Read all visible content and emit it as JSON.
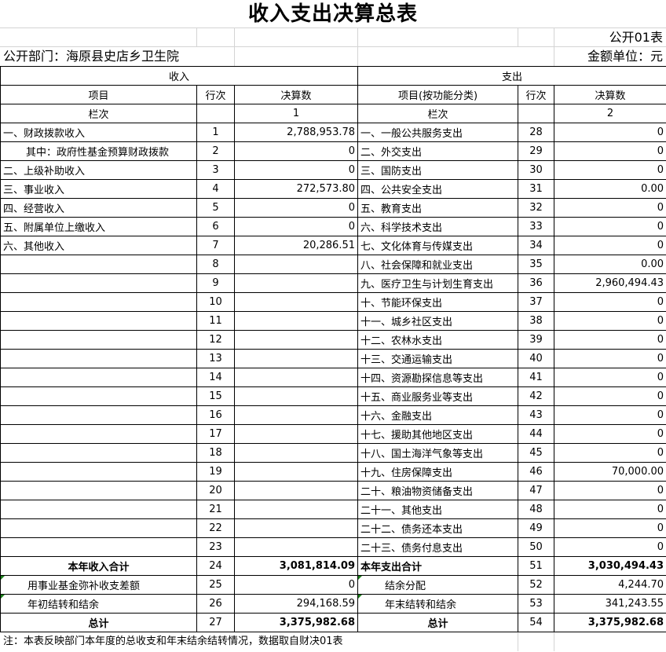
{
  "title": "收入支出决算总表",
  "form_code": "公开01表",
  "department": "公开部门：海原县史店乡卫生院",
  "unit": "金额单位：元",
  "headers": {
    "income": "收入",
    "expense": "支出",
    "item": "项目",
    "row_no": "行次",
    "amount": "决算数",
    "item_func": "项目(按功能分类)",
    "col_label": "栏次",
    "col1": "1",
    "col2": "2"
  },
  "rows": [
    {
      "in_item": "一、财政拨款收入",
      "in_no": "1",
      "in_amt": "2,788,953.78",
      "ex_item": "一、一般公共服务支出",
      "ex_no": "28",
      "ex_amt": "0"
    },
    {
      "in_item": "其中：政府性基金预算财政拨款",
      "in_no": "2",
      "in_amt": "0",
      "ex_item": "二、外交支出",
      "ex_no": "29",
      "ex_amt": "0"
    },
    {
      "in_item": "二、上级补助收入",
      "in_no": "3",
      "in_amt": "0",
      "ex_item": "三、国防支出",
      "ex_no": "30",
      "ex_amt": "0"
    },
    {
      "in_item": "三、事业收入",
      "in_no": "4",
      "in_amt": "272,573.80",
      "ex_item": "四、公共安全支出",
      "ex_no": "31",
      "ex_amt": "0.00"
    },
    {
      "in_item": "四、经营收入",
      "in_no": "5",
      "in_amt": "0",
      "ex_item": "五、教育支出",
      "ex_no": "32",
      "ex_amt": "0"
    },
    {
      "in_item": "五、附属单位上缴收入",
      "in_no": "6",
      "in_amt": "0",
      "ex_item": "六、科学技术支出",
      "ex_no": "33",
      "ex_amt": "0"
    },
    {
      "in_item": "六、其他收入",
      "in_no": "7",
      "in_amt": "20,286.51",
      "ex_item": "七、文化体育与传媒支出",
      "ex_no": "34",
      "ex_amt": "0"
    },
    {
      "in_item": "",
      "in_no": "8",
      "in_amt": "",
      "ex_item": "八、社会保障和就业支出",
      "ex_no": "35",
      "ex_amt": "0.00"
    },
    {
      "in_item": "",
      "in_no": "9",
      "in_amt": "",
      "ex_item": "九、医疗卫生与计划生育支出",
      "ex_no": "36",
      "ex_amt": "2,960,494.43"
    },
    {
      "in_item": "",
      "in_no": "10",
      "in_amt": "",
      "ex_item": "十、节能环保支出",
      "ex_no": "37",
      "ex_amt": "0"
    },
    {
      "in_item": "",
      "in_no": "11",
      "in_amt": "",
      "ex_item": "十一、城乡社区支出",
      "ex_no": "38",
      "ex_amt": "0"
    },
    {
      "in_item": "",
      "in_no": "12",
      "in_amt": "",
      "ex_item": "十二、农林水支出",
      "ex_no": "39",
      "ex_amt": "0"
    },
    {
      "in_item": "",
      "in_no": "13",
      "in_amt": "",
      "ex_item": "十三、交通运输支出",
      "ex_no": "40",
      "ex_amt": "0"
    },
    {
      "in_item": "",
      "in_no": "14",
      "in_amt": "",
      "ex_item": "十四、资源勘探信息等支出",
      "ex_no": "41",
      "ex_amt": "0"
    },
    {
      "in_item": "",
      "in_no": "15",
      "in_amt": "",
      "ex_item": "十五、商业服务业等支出",
      "ex_no": "42",
      "ex_amt": "0"
    },
    {
      "in_item": "",
      "in_no": "16",
      "in_amt": "",
      "ex_item": "十六、金融支出",
      "ex_no": "43",
      "ex_amt": "0"
    },
    {
      "in_item": "",
      "in_no": "17",
      "in_amt": "",
      "ex_item": "十七、援助其他地区支出",
      "ex_no": "44",
      "ex_amt": "0"
    },
    {
      "in_item": "",
      "in_no": "18",
      "in_amt": "",
      "ex_item": "十八、国土海洋气象等支出",
      "ex_no": "45",
      "ex_amt": "0"
    },
    {
      "in_item": "",
      "in_no": "19",
      "in_amt": "",
      "ex_item": "十九、住房保障支出",
      "ex_no": "46",
      "ex_amt": "70,000.00"
    },
    {
      "in_item": "",
      "in_no": "20",
      "in_amt": "",
      "ex_item": "二十、粮油物资储备支出",
      "ex_no": "47",
      "ex_amt": "0"
    },
    {
      "in_item": "",
      "in_no": "21",
      "in_amt": "",
      "ex_item": "二十一、其他支出",
      "ex_no": "48",
      "ex_amt": "0"
    },
    {
      "in_item": "",
      "in_no": "22",
      "in_amt": "",
      "ex_item": "二十二、债务还本支出",
      "ex_no": "49",
      "ex_amt": "0"
    },
    {
      "in_item": "",
      "in_no": "23",
      "in_amt": "",
      "ex_item": "二十三、债务付息支出",
      "ex_no": "50",
      "ex_amt": "0"
    }
  ],
  "summary": [
    {
      "in_item": "本年收入合计",
      "in_no": "24",
      "in_amt": "3,081,814.09",
      "ex_item": "本年支出合计",
      "ex_no": "51",
      "ex_amt": "3,030,494.43"
    },
    {
      "in_item": "用事业基金弥补收支差额",
      "in_no": "25",
      "in_amt": "0",
      "ex_item": "结余分配",
      "ex_no": "52",
      "ex_amt": "4,244.70"
    },
    {
      "in_item": "年初结转和结余",
      "in_no": "26",
      "in_amt": "294,168.59",
      "ex_item": "年末结转和结余",
      "ex_no": "53",
      "ex_amt": "341,243.55"
    },
    {
      "in_item": "总计",
      "in_no": "27",
      "in_amt": "3,375,982.68",
      "ex_item": "总计",
      "ex_no": "54",
      "ex_amt": "3,375,982.68"
    }
  ],
  "note": "注：本表反映部门本年度的总收支和年末结余结转情况，数据取自财决01表"
}
